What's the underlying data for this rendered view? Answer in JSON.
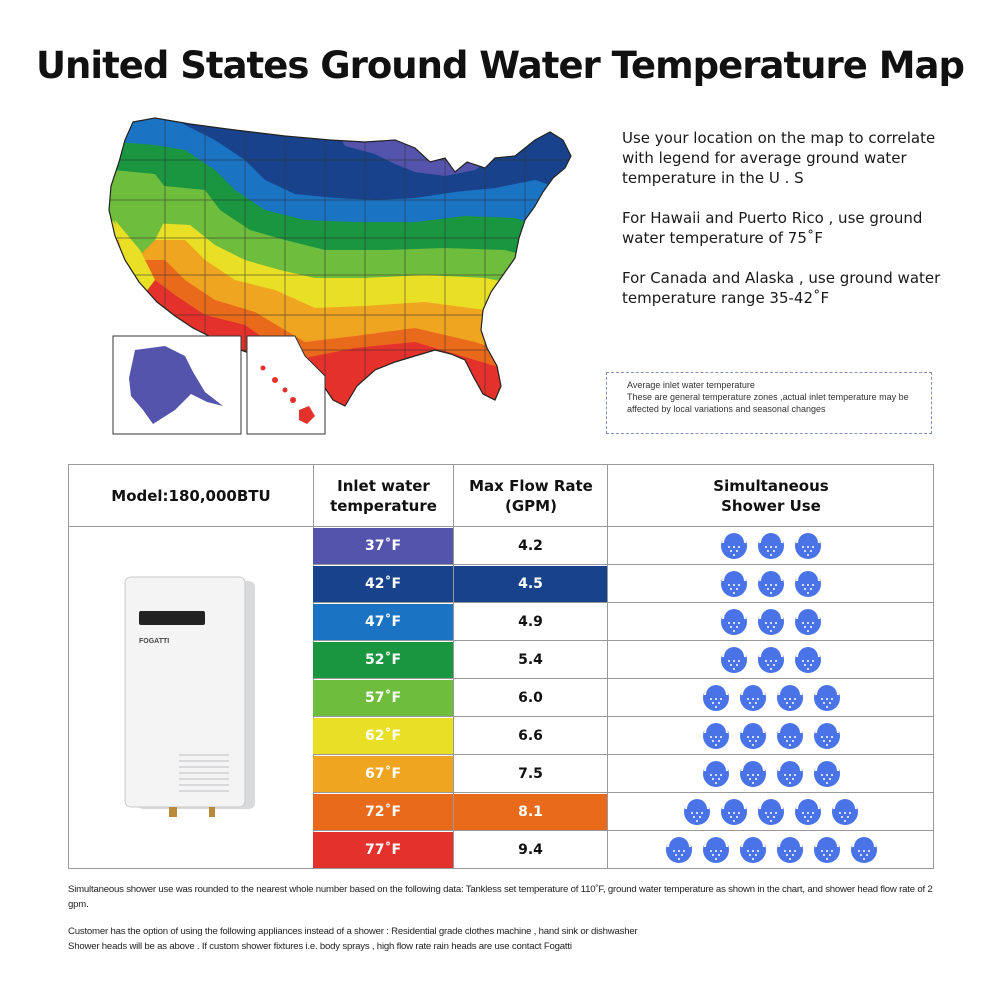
{
  "title": "United States Ground Water Temperature Map",
  "info": {
    "p1": "Use your location on the map to correlate with legend for average ground water temperature in the U . S",
    "p2": "For Hawaii and Puerto Rico , use ground water temperature of 75˚F",
    "p3": "For Canada and Alaska , use ground water temperature range 35-42˚F"
  },
  "note": {
    "line1": "Average inlet water temperature",
    "line2": "These are general temperature zones ,actual inlet temperature may be affected by local variations and seasonal changes"
  },
  "table": {
    "model": "Model:180,000BTU",
    "col_inlet": "Inlet water temperature",
    "col_flow": "Max Flow Rate (GPM)",
    "col_shower": "Simultaneous Shower Use",
    "heater_brand": "FOGATTI",
    "rows": [
      {
        "temp": "37˚F",
        "flow": "4.2",
        "showers": 3,
        "color": "#5454ad",
        "flow_bg": "",
        "flow_color": "#111111"
      },
      {
        "temp": "42˚F",
        "flow": "4.5",
        "showers": 3,
        "color": "#18438c",
        "flow_bg": "#18438c",
        "flow_color": "#ffffff"
      },
      {
        "temp": "47˚F",
        "flow": "4.9",
        "showers": 3,
        "color": "#1b73c4",
        "flow_bg": "",
        "flow_color": "#111111"
      },
      {
        "temp": "52˚F",
        "flow": "5.4",
        "showers": 3,
        "color": "#1a9540",
        "flow_bg": "",
        "flow_color": "#111111"
      },
      {
        "temp": "57˚F",
        "flow": "6.0",
        "showers": 4,
        "color": "#6fbd3c",
        "flow_bg": "",
        "flow_color": "#111111"
      },
      {
        "temp": "62˚F",
        "flow": "6.6",
        "showers": 4,
        "color": "#e9df25",
        "flow_bg": "",
        "flow_color": "#111111"
      },
      {
        "temp": "67˚F",
        "flow": "7.5",
        "showers": 4,
        "color": "#f0a521",
        "flow_bg": "",
        "flow_color": "#111111"
      },
      {
        "temp": "72˚F",
        "flow": "8.1",
        "showers": 5,
        "color": "#ea6a1c",
        "flow_bg": "#ea6a1c",
        "flow_color": "#ffffff"
      },
      {
        "temp": "77˚F",
        "flow": "9.4",
        "showers": 6,
        "color": "#e4312b",
        "flow_bg": "",
        "flow_color": "#111111"
      }
    ]
  },
  "footnotes": {
    "p1": "Simultaneous shower use was rounded to the nearest whole number based on the following data: Tankless set temperature of 110˚F, ground water temperature as shown in the chart, and shower head flow rate of 2 gpm.",
    "p2a": "Customer has the option of using the following appliances instead of a shower : Residential grade clothes machine , hand sink or dishwasher",
    "p2b": "Shower heads will be as above . If custom shower fixtures i.e. body sprays , high flow rate rain heads are use contact Fogatti"
  },
  "icons": {
    "shower": "shower-head-icon",
    "heater": "water-heater-image"
  },
  "colors": {
    "shower_blue": "#4a73e8",
    "zone_colors": [
      "#5454ad",
      "#18438c",
      "#1b73c4",
      "#1a9540",
      "#6fbd3c",
      "#e9df25",
      "#f0a521",
      "#ea6a1c",
      "#e4312b"
    ]
  }
}
